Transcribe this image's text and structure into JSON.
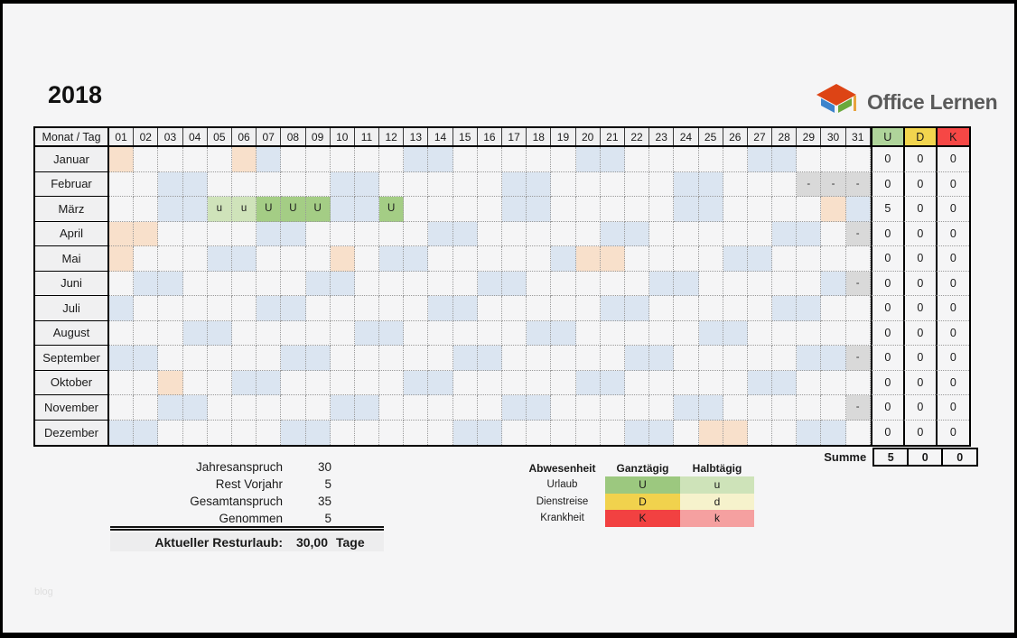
{
  "year": "2018",
  "logo": {
    "text": "Office Lernen"
  },
  "watermark": "blog",
  "table": {
    "corner_label": "Monat / Tag",
    "day_headers": [
      "01",
      "02",
      "03",
      "04",
      "05",
      "06",
      "07",
      "08",
      "09",
      "10",
      "11",
      "12",
      "13",
      "14",
      "15",
      "16",
      "17",
      "18",
      "19",
      "20",
      "21",
      "22",
      "23",
      "24",
      "25",
      "26",
      "27",
      "28",
      "29",
      "30",
      "31"
    ],
    "summary_headers": [
      "U",
      "D",
      "K"
    ],
    "cell_codes_legend": {
      "we": "weekend",
      "ho": "holiday",
      "na": "day-not-in-month",
      "U": "vacation-full-day",
      "u": "vacation-half-day"
    },
    "months": [
      {
        "name": "Januar",
        "cells": {
          "1": "ho",
          "6": "ho",
          "7": "we",
          "13": "we",
          "14": "we",
          "20": "we",
          "21": "we",
          "27": "we",
          "28": "we"
        },
        "sums": [
          "0",
          "0",
          "0"
        ]
      },
      {
        "name": "Februar",
        "cells": {
          "3": "we",
          "4": "we",
          "10": "we",
          "11": "we",
          "17": "we",
          "18": "we",
          "24": "we",
          "25": "we",
          "29": "na",
          "30": "na",
          "31": "na"
        },
        "sums": [
          "0",
          "0",
          "0"
        ]
      },
      {
        "name": "März",
        "cells": {
          "3": "we",
          "4": "we",
          "5": "u",
          "6": "u",
          "7": "U",
          "8": "U",
          "9": "U",
          "10": "we",
          "11": "we",
          "12": "U",
          "17": "we",
          "18": "we",
          "24": "we",
          "25": "we",
          "30": "ho",
          "31": "we"
        },
        "sums": [
          "5",
          "0",
          "0"
        ]
      },
      {
        "name": "April",
        "cells": {
          "1": "ho",
          "2": "ho",
          "7": "we",
          "8": "we",
          "14": "we",
          "15": "we",
          "21": "we",
          "22": "we",
          "28": "we",
          "29": "we",
          "31": "na"
        },
        "sums": [
          "0",
          "0",
          "0"
        ]
      },
      {
        "name": "Mai",
        "cells": {
          "1": "ho",
          "5": "we",
          "6": "we",
          "10": "ho",
          "12": "we",
          "13": "we",
          "19": "we",
          "20": "ho",
          "21": "ho",
          "26": "we",
          "27": "we"
        },
        "sums": [
          "0",
          "0",
          "0"
        ]
      },
      {
        "name": "Juni",
        "cells": {
          "2": "we",
          "3": "we",
          "9": "we",
          "10": "we",
          "16": "we",
          "17": "we",
          "23": "we",
          "24": "we",
          "30": "we",
          "31": "na"
        },
        "sums": [
          "0",
          "0",
          "0"
        ]
      },
      {
        "name": "Juli",
        "cells": {
          "1": "we",
          "7": "we",
          "8": "we",
          "14": "we",
          "15": "we",
          "21": "we",
          "22": "we",
          "28": "we",
          "29": "we"
        },
        "sums": [
          "0",
          "0",
          "0"
        ]
      },
      {
        "name": "August",
        "cells": {
          "4": "we",
          "5": "we",
          "11": "we",
          "12": "we",
          "18": "we",
          "19": "we",
          "25": "we",
          "26": "we"
        },
        "sums": [
          "0",
          "0",
          "0"
        ]
      },
      {
        "name": "September",
        "cells": {
          "1": "we",
          "2": "we",
          "8": "we",
          "9": "we",
          "15": "we",
          "16": "we",
          "22": "we",
          "23": "we",
          "29": "we",
          "30": "we",
          "31": "na"
        },
        "sums": [
          "0",
          "0",
          "0"
        ]
      },
      {
        "name": "Oktober",
        "cells": {
          "3": "ho",
          "6": "we",
          "7": "we",
          "13": "we",
          "14": "we",
          "20": "we",
          "21": "we",
          "27": "we",
          "28": "we"
        },
        "sums": [
          "0",
          "0",
          "0"
        ]
      },
      {
        "name": "November",
        "cells": {
          "3": "we",
          "4": "we",
          "10": "we",
          "11": "we",
          "17": "we",
          "18": "we",
          "24": "we",
          "25": "we",
          "31": "na"
        },
        "sums": [
          "0",
          "0",
          "0"
        ]
      },
      {
        "name": "Dezember",
        "cells": {
          "1": "we",
          "2": "we",
          "8": "we",
          "9": "we",
          "15": "we",
          "16": "we",
          "22": "we",
          "23": "we",
          "25": "ho",
          "26": "ho",
          "29": "we",
          "30": "we"
        },
        "sums": [
          "0",
          "0",
          "0"
        ]
      }
    ],
    "summe_label": "Summe",
    "summe_values": [
      "5",
      "0",
      "0"
    ]
  },
  "stats": {
    "rows": [
      {
        "label": "Jahresanspruch",
        "value": "30"
      },
      {
        "label": "Rest Vorjahr",
        "value": "5"
      },
      {
        "label": "Gesamtanspruch",
        "value": "35"
      },
      {
        "label": "Genommen",
        "value": "5"
      }
    ],
    "result": {
      "label": "Aktueller Resturlaub:",
      "value": "30,00",
      "unit": "Tage"
    }
  },
  "legend": {
    "headers": [
      "Abwesenheit",
      "Ganztägig",
      "Halbtägig"
    ],
    "rows": [
      {
        "label": "Urlaub",
        "full": "U",
        "half": "u"
      },
      {
        "label": "Dienstreise",
        "full": "D",
        "half": "d"
      },
      {
        "label": "Krankheit",
        "full": "K",
        "half": "k"
      }
    ]
  },
  "colors": {
    "weekend": "#dbe5f1",
    "holiday": "#f8e0cb",
    "not_in_month": "#d9d9d9",
    "urlaub_full": "#9cc87f",
    "urlaub_half": "#cee3b9",
    "dienstreise_full": "#f1d24d",
    "dienstreise_half": "#f6f2cc",
    "krankheit_full": "#f24141",
    "krankheit_half": "#f5a0a0",
    "header_u": "#afd49a",
    "header_d": "#f2d54e",
    "header_k": "#f64745"
  }
}
